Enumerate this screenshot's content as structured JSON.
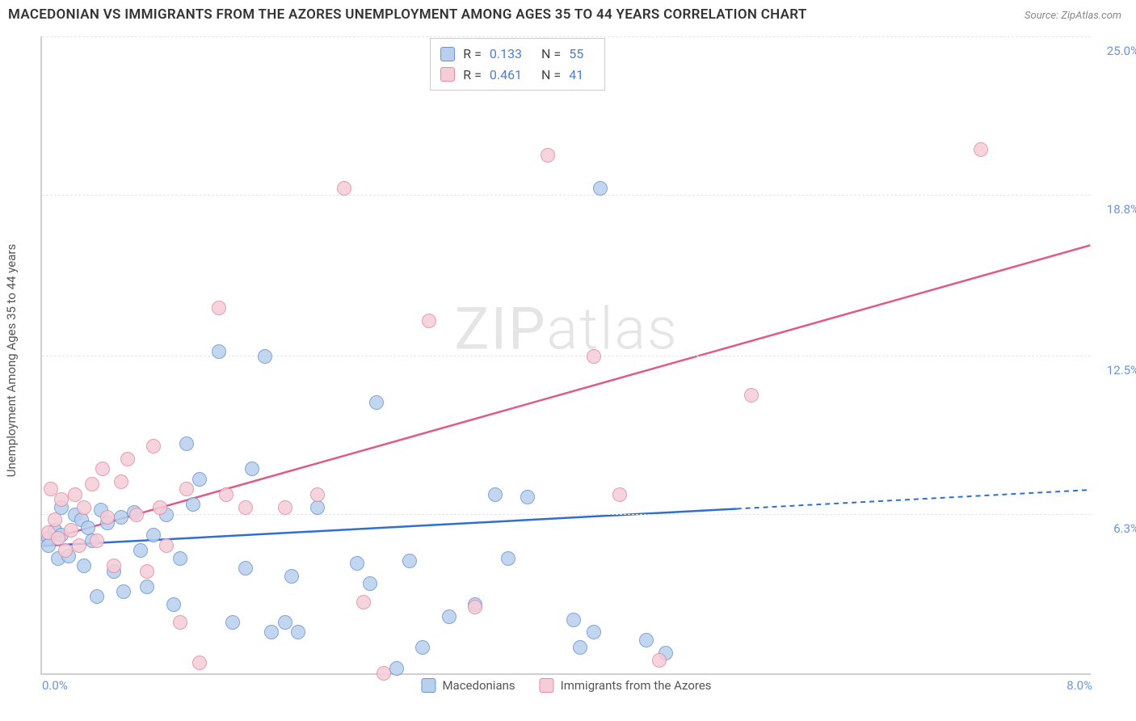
{
  "title": "MACEDONIAN VS IMMIGRANTS FROM THE AZORES UNEMPLOYMENT AMONG AGES 35 TO 44 YEARS CORRELATION CHART",
  "source": "Source: ZipAtlas.com",
  "ylabel": "Unemployment Among Ages 35 to 44 years",
  "watermark_bold": "ZIP",
  "watermark_thin": "atlas",
  "chart": {
    "type": "scatter",
    "background_color": "#ffffff",
    "grid_color": "#e5e5e5",
    "axis_color": "#d0d0d0",
    "label_color": "#555555",
    "tick_color": "#6a95d4",
    "xlim": [
      0,
      8
    ],
    "ylim": [
      0,
      25
    ],
    "xticks": [
      {
        "v": 0.0,
        "label": "0.0%"
      },
      {
        "v": 8.0,
        "label": "8.0%"
      }
    ],
    "yticks": [
      {
        "v": 6.3,
        "label": "6.3%"
      },
      {
        "v": 12.5,
        "label": "12.5%"
      },
      {
        "v": 18.8,
        "label": "18.8%"
      },
      {
        "v": 25.0,
        "label": "25.0%"
      }
    ],
    "marker_radius": 9,
    "series": [
      {
        "name": "Macedonians",
        "fill": "#b8d0ee",
        "stroke": "#6a95d4",
        "line_color": "#2f6fd0",
        "R": "0.133",
        "N": "55",
        "trend": {
          "x1": 0.0,
          "y1": 5.0,
          "x2_solid": 5.3,
          "x2": 8.0,
          "y2": 7.2
        },
        "points": [
          [
            0.05,
            5.3
          ],
          [
            0.05,
            5.0
          ],
          [
            0.1,
            5.6
          ],
          [
            0.12,
            4.5
          ],
          [
            0.15,
            5.4
          ],
          [
            0.15,
            6.5
          ],
          [
            0.2,
            4.6
          ],
          [
            0.25,
            6.2
          ],
          [
            0.3,
            6.0
          ],
          [
            0.32,
            4.2
          ],
          [
            0.35,
            5.7
          ],
          [
            0.38,
            5.2
          ],
          [
            0.42,
            3.0
          ],
          [
            0.45,
            6.4
          ],
          [
            0.5,
            5.9
          ],
          [
            0.55,
            4.0
          ],
          [
            0.6,
            6.1
          ],
          [
            0.62,
            3.2
          ],
          [
            0.7,
            6.3
          ],
          [
            0.75,
            4.8
          ],
          [
            0.8,
            3.4
          ],
          [
            0.85,
            5.4
          ],
          [
            0.95,
            6.2
          ],
          [
            1.0,
            2.7
          ],
          [
            1.05,
            4.5
          ],
          [
            1.1,
            9.0
          ],
          [
            1.15,
            6.6
          ],
          [
            1.2,
            7.6
          ],
          [
            1.35,
            12.6
          ],
          [
            1.45,
            2.0
          ],
          [
            1.55,
            4.1
          ],
          [
            1.6,
            8.0
          ],
          [
            1.7,
            12.4
          ],
          [
            1.75,
            1.6
          ],
          [
            1.85,
            2.0
          ],
          [
            1.9,
            3.8
          ],
          [
            1.95,
            1.6
          ],
          [
            2.1,
            6.5
          ],
          [
            2.4,
            4.3
          ],
          [
            2.5,
            3.5
          ],
          [
            2.55,
            10.6
          ],
          [
            2.7,
            0.2
          ],
          [
            2.8,
            4.4
          ],
          [
            2.9,
            1.0
          ],
          [
            3.1,
            2.2
          ],
          [
            3.3,
            2.7
          ],
          [
            3.45,
            7.0
          ],
          [
            3.55,
            4.5
          ],
          [
            3.7,
            6.9
          ],
          [
            4.05,
            2.1
          ],
          [
            4.1,
            1.0
          ],
          [
            4.2,
            1.6
          ],
          [
            4.25,
            19.0
          ],
          [
            4.6,
            1.3
          ],
          [
            4.75,
            0.8
          ]
        ]
      },
      {
        "name": "Immigrants from the Azores",
        "fill": "#f5cdd7",
        "stroke": "#e48aa5",
        "line_color": "#e05a87",
        "R": "0.461",
        "N": "41",
        "trend": {
          "x1": 0.0,
          "y1": 5.2,
          "x2_solid": 8.0,
          "x2": 8.0,
          "y2": 16.8
        },
        "points": [
          [
            0.05,
            5.5
          ],
          [
            0.07,
            7.2
          ],
          [
            0.1,
            6.0
          ],
          [
            0.12,
            5.3
          ],
          [
            0.15,
            6.8
          ],
          [
            0.18,
            4.8
          ],
          [
            0.22,
            5.6
          ],
          [
            0.25,
            7.0
          ],
          [
            0.28,
            5.0
          ],
          [
            0.32,
            6.5
          ],
          [
            0.38,
            7.4
          ],
          [
            0.42,
            5.2
          ],
          [
            0.46,
            8.0
          ],
          [
            0.5,
            6.1
          ],
          [
            0.55,
            4.2
          ],
          [
            0.6,
            7.5
          ],
          [
            0.65,
            8.4
          ],
          [
            0.72,
            6.2
          ],
          [
            0.8,
            4.0
          ],
          [
            0.85,
            8.9
          ],
          [
            0.9,
            6.5
          ],
          [
            0.95,
            5.0
          ],
          [
            1.05,
            2.0
          ],
          [
            1.1,
            7.2
          ],
          [
            1.2,
            0.4
          ],
          [
            1.35,
            14.3
          ],
          [
            1.4,
            7.0
          ],
          [
            1.55,
            6.5
          ],
          [
            1.85,
            6.5
          ],
          [
            2.1,
            7.0
          ],
          [
            2.3,
            19.0
          ],
          [
            2.45,
            2.8
          ],
          [
            2.6,
            0.0
          ],
          [
            2.95,
            13.8
          ],
          [
            3.3,
            2.6
          ],
          [
            3.85,
            20.3
          ],
          [
            4.2,
            12.4
          ],
          [
            4.4,
            7.0
          ],
          [
            4.7,
            0.5
          ],
          [
            5.4,
            10.9
          ],
          [
            7.15,
            20.5
          ]
        ]
      }
    ]
  },
  "stats_labels": {
    "R": "R =",
    "N": "N ="
  },
  "legend_labels": {
    "s1": "Macedonians",
    "s2": "Immigrants from the Azores"
  }
}
